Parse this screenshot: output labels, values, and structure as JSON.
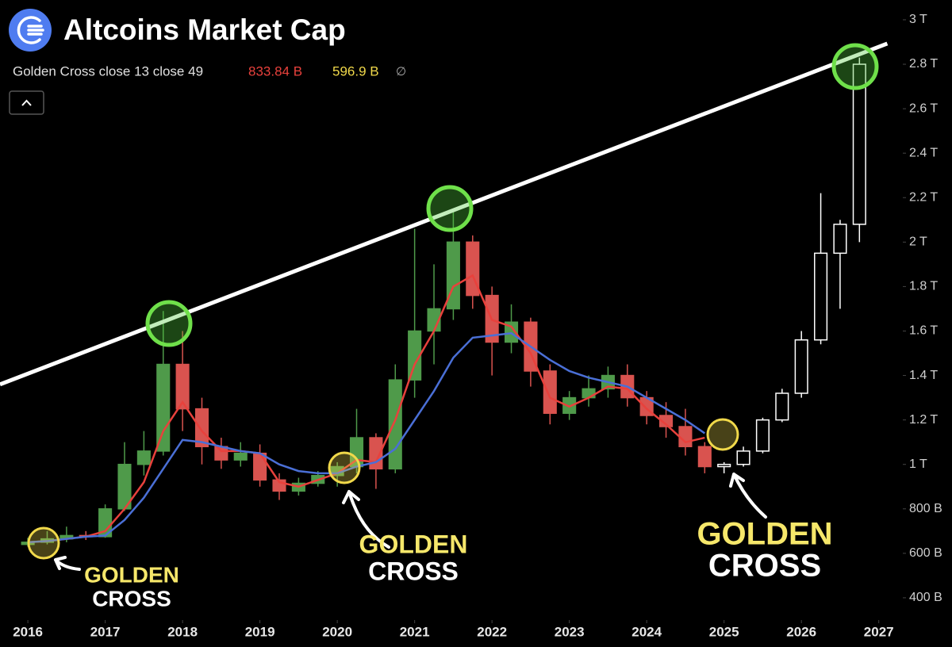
{
  "chart_data": {
    "type": "candlestick",
    "title": "Altcoins Market Cap",
    "legend": {
      "name": "Golden Cross close 13 close 49",
      "value_1": "833.84 B",
      "value_2": "596.9 B",
      "symbol": "∅"
    },
    "xlim": [
      2015.64,
      2027.28
    ],
    "xticks": [
      2016,
      2017,
      2018,
      2019,
      2020,
      2021,
      2022,
      2023,
      2024,
      2025,
      2026,
      2027
    ],
    "ylim": [
      307,
      3089
    ],
    "yticks": [
      {
        "value": 3000,
        "label": "3 T"
      },
      {
        "value": 2800,
        "label": "2.8 T"
      },
      {
        "value": 2600,
        "label": "2.6 T"
      },
      {
        "value": 2400,
        "label": "2.4 T"
      },
      {
        "value": 2200,
        "label": "2.2 T"
      },
      {
        "value": 2000,
        "label": "2 T"
      },
      {
        "value": 1800,
        "label": "1.8 T"
      },
      {
        "value": 1600,
        "label": "1.6 T"
      },
      {
        "value": 1400,
        "label": "1.4 T"
      },
      {
        "value": 1200,
        "label": "1.2 T"
      },
      {
        "value": 1000,
        "label": "1 T"
      },
      {
        "value": 800,
        "label": "800 B"
      },
      {
        "value": 600,
        "label": "600 B"
      },
      {
        "value": 400,
        "label": "400 B"
      }
    ],
    "up_color": "#4f9a4a",
    "down_color": "#d9534f",
    "projected_color": "#ffffff",
    "candles": {
      "x": [
        2016.0,
        2016.25,
        2016.5,
        2016.75,
        2017.0,
        2017.25,
        2017.5,
        2017.75,
        2018.0,
        2018.25,
        2018.5,
        2018.75,
        2019.0,
        2019.25,
        2019.5,
        2019.75,
        2020.0,
        2020.25,
        2020.5,
        2020.75,
        2021.0,
        2021.25,
        2021.5,
        2021.75,
        2022.0,
        2022.25,
        2022.5,
        2022.75,
        2023.0,
        2023.25,
        2023.5,
        2023.75,
        2024.0,
        2024.25,
        2024.5,
        2024.75
      ],
      "open": [
        640,
        650,
        665,
        680,
        675,
        800,
        1000,
        1060,
        1450,
        1250,
        1080,
        1020,
        1050,
        930,
        880,
        915,
        950,
        990,
        1120,
        980,
        1380,
        1600,
        1700,
        2000,
        1760,
        1550,
        1640,
        1420,
        1230,
        1300,
        1340,
        1400,
        1300,
        1220,
        1170,
        1080
      ],
      "high": [
        670,
        700,
        720,
        700,
        820,
        1100,
        1150,
        1690,
        1600,
        1300,
        1120,
        1100,
        1090,
        960,
        940,
        970,
        1010,
        1250,
        1140,
        1450,
        2060,
        1900,
        2150,
        2030,
        1800,
        1720,
        1660,
        1450,
        1330,
        1400,
        1440,
        1450,
        1330,
        1280,
        1250,
        1100
      ],
      "low": [
        630,
        640,
        650,
        660,
        670,
        790,
        950,
        1040,
        1150,
        1000,
        980,
        990,
        900,
        840,
        860,
        900,
        900,
        960,
        890,
        960,
        1300,
        1450,
        1650,
        1700,
        1400,
        1500,
        1350,
        1180,
        1200,
        1260,
        1300,
        1260,
        1180,
        1120,
        1040,
        960
      ],
      "close": [
        650,
        665,
        680,
        675,
        800,
        1000,
        1060,
        1450,
        1250,
        1080,
        1020,
        1050,
        930,
        880,
        915,
        950,
        990,
        1120,
        980,
        1380,
        1600,
        1700,
        2000,
        1760,
        1550,
        1640,
        1420,
        1230,
        1300,
        1340,
        1400,
        1300,
        1220,
        1170,
        1080,
        990
      ]
    },
    "projection": {
      "x": [
        2025.0,
        2025.25,
        2025.5,
        2025.75,
        2026.0,
        2026.25,
        2026.5,
        2026.75
      ],
      "open": [
        990,
        1000,
        1060,
        1200,
        1320,
        1560,
        1950,
        2080
      ],
      "high": [
        1010,
        1080,
        1210,
        1340,
        1600,
        2220,
        2100,
        2830
      ],
      "low": [
        960,
        990,
        1050,
        1190,
        1300,
        1540,
        1700,
        2000
      ],
      "close": [
        1000,
        1060,
        1200,
        1320,
        1560,
        1950,
        2080,
        2800
      ]
    },
    "series": [
      {
        "color": "#e8413c",
        "x": [
          2016.0,
          2016.25,
          2016.5,
          2016.75,
          2017.0,
          2017.25,
          2017.5,
          2017.75,
          2018.0,
          2018.25,
          2018.5,
          2018.75,
          2019.0,
          2019.25,
          2019.5,
          2019.75,
          2020.0,
          2020.25,
          2020.5,
          2020.75,
          2021.0,
          2021.25,
          2021.5,
          2021.75,
          2022.0,
          2022.25,
          2022.5,
          2022.75,
          2023.0,
          2023.25,
          2023.5,
          2023.75,
          2024.0,
          2024.25,
          2024.5,
          2024.75
        ],
        "values": [
          650,
          655,
          665,
          675,
          700,
          800,
          920,
          1150,
          1280,
          1150,
          1060,
          1060,
          1050,
          920,
          900,
          930,
          960,
          1020,
          1010,
          1200,
          1450,
          1600,
          1800,
          1850,
          1650,
          1620,
          1500,
          1300,
          1260,
          1300,
          1350,
          1340,
          1250,
          1180,
          1100,
          1120
        ]
      },
      {
        "color": "#4a6fd6",
        "x": [
          2016.0,
          2016.25,
          2016.5,
          2016.75,
          2017.0,
          2017.25,
          2017.5,
          2017.75,
          2018.0,
          2018.25,
          2018.5,
          2018.75,
          2019.0,
          2019.25,
          2019.5,
          2019.75,
          2020.0,
          2020.25,
          2020.5,
          2020.75,
          2021.0,
          2021.25,
          2021.5,
          2021.75,
          2022.0,
          2022.25,
          2022.5,
          2022.75,
          2023.0,
          2023.25,
          2023.5,
          2023.75,
          2024.0,
          2024.25,
          2024.5,
          2024.75
        ],
        "values": [
          650,
          655,
          665,
          675,
          680,
          750,
          850,
          980,
          1110,
          1100,
          1080,
          1060,
          1050,
          1000,
          970,
          960,
          960,
          990,
          1010,
          1070,
          1200,
          1330,
          1480,
          1570,
          1580,
          1590,
          1530,
          1470,
          1420,
          1390,
          1370,
          1350,
          1300,
          1250,
          1200,
          1140
        ]
      }
    ],
    "trendline": {
      "color": "#ffffff",
      "x": [
        2015.64,
        2027.11
      ],
      "values": [
        1360,
        2893
      ]
    },
    "annotations": [
      {
        "line1": "GOLDEN",
        "line2": "CROSS"
      },
      {
        "line1": "GOLDEN",
        "line2": "CROSS"
      },
      {
        "line1": "GOLDEN",
        "line2": "CROSS"
      }
    ]
  }
}
